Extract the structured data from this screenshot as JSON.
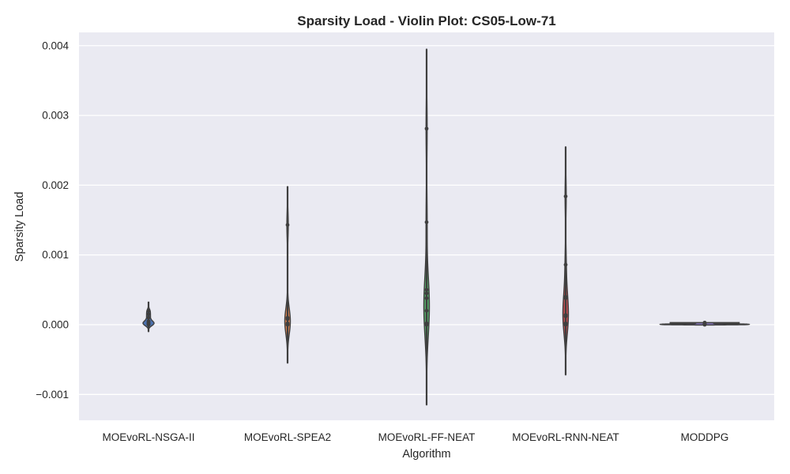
{
  "chart_data": {
    "type": "violin",
    "title": "Sparsity Load - Violin Plot: CS05-Low-71",
    "xlabel": "Algorithm",
    "ylabel": "Sparsity Load",
    "ylim": [
      -0.00137,
      0.00419
    ],
    "yticks": [
      -0.001,
      0.0,
      0.001,
      0.002,
      0.003,
      0.004
    ],
    "ytick_labels": [
      "−0.001",
      "0.000",
      "0.001",
      "0.002",
      "0.003",
      "0.004"
    ],
    "grid": true,
    "categories": [
      "MOEvoRL-NSGA-II",
      "MOEvoRL-SPEA2",
      "MOEvoRL-FF-NEAT",
      "MOEvoRL-RNN-NEAT",
      "MODDPG"
    ],
    "series": [
      {
        "category": "MOEvoRL-NSGA-II",
        "color": "#4c72b0",
        "range": [
          -0.0001,
          0.00033
        ],
        "points": [
          0.0,
          1e-05,
          2e-05,
          3e-05,
          5e-05,
          0.0001,
          0.00015,
          0.0002
        ]
      },
      {
        "category": "MOEvoRL-SPEA2",
        "color": "#dd8452",
        "range": [
          -0.00055,
          0.00198
        ],
        "points": [
          0.0,
          2e-05,
          8e-05,
          0.0001,
          0.00143
        ]
      },
      {
        "category": "MOEvoRL-FF-NEAT",
        "color": "#55a868",
        "range": [
          -0.00115,
          0.00395
        ],
        "points": [
          0.0,
          2e-05,
          0.0002,
          0.00038,
          0.00045,
          0.0005,
          0.00147,
          0.00281
        ]
      },
      {
        "category": "MOEvoRL-RNN-NEAT",
        "color": "#c44e52",
        "range": [
          -0.00072,
          0.00255
        ],
        "points": [
          0.0,
          2e-05,
          0.00012,
          0.00014,
          0.00038,
          0.0004,
          0.00086,
          0.00184
        ]
      },
      {
        "category": "MODDPG",
        "color": "#8172b3",
        "range": [
          -5e-06,
          3e-05
        ],
        "points": [
          0.0,
          5e-06,
          1e-05,
          2e-05,
          3e-05
        ]
      }
    ]
  }
}
